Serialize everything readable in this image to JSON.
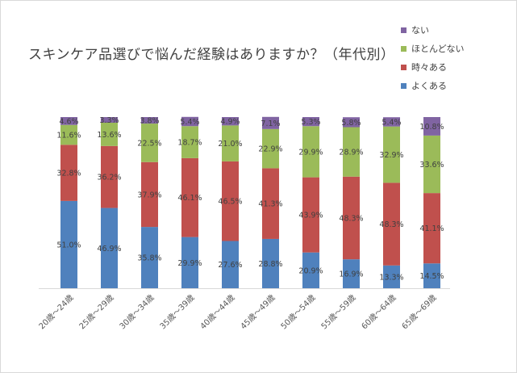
{
  "chart_data": {
    "type": "bar",
    "stacked": true,
    "title": "スキンケア品選びで悩んだ経験はありますか？（年代別）",
    "categories": [
      "20歳～24歳",
      "25歳～29歳",
      "30歳～34歳",
      "35歳～39歳",
      "40歳～44歳",
      "45歳～49歳",
      "50歳～54歳",
      "55歳～59歳",
      "60歳～64歳",
      "65歳～69歳"
    ],
    "ylim": [
      0,
      100
    ],
    "grid": false,
    "legend_position": "top-right",
    "series": [
      {
        "name": "よくある",
        "color": "#4f81bd",
        "values": [
          51.0,
          46.9,
          35.8,
          29.9,
          27.6,
          28.8,
          20.9,
          16.9,
          13.3,
          14.5
        ],
        "labels": [
          "51.0%",
          "46.9%",
          "35.8%",
          "29.9%",
          "27.6%",
          "28.8%",
          "20.9%",
          "16.9%",
          "13.3%",
          "14.5%"
        ]
      },
      {
        "name": "時々ある",
        "color": "#c0504d",
        "values": [
          32.8,
          36.2,
          37.9,
          46.1,
          46.5,
          41.3,
          43.9,
          48.3,
          48.3,
          41.1
        ],
        "labels": [
          "32.8%",
          "36.2%",
          "37.9%",
          "46.1%",
          "46.5%",
          "41.3%",
          "43.9%",
          "48.3%",
          "48.3%",
          "41.1%"
        ]
      },
      {
        "name": "ほとんどない",
        "color": "#9bbb59",
        "values": [
          11.6,
          13.6,
          22.5,
          18.7,
          21.0,
          22.9,
          29.9,
          28.9,
          32.9,
          33.6
        ],
        "labels": [
          "11.6%",
          "13.6%",
          "22.5%",
          "18.7%",
          "21.0%",
          "22.9%",
          "29.9%",
          "28.9%",
          "32.9%",
          "33.6%"
        ]
      },
      {
        "name": "ない",
        "color": "#8064a2",
        "values": [
          4.6,
          3.3,
          3.8,
          5.4,
          4.9,
          7.1,
          5.3,
          5.8,
          5.4,
          10.8
        ],
        "labels": [
          "4.6%",
          "3.3%",
          "3.8%",
          "5.4%",
          "4.9%",
          "7.1%",
          "5.3%",
          "5.8%",
          "5.4%",
          "10.8%"
        ]
      }
    ]
  }
}
